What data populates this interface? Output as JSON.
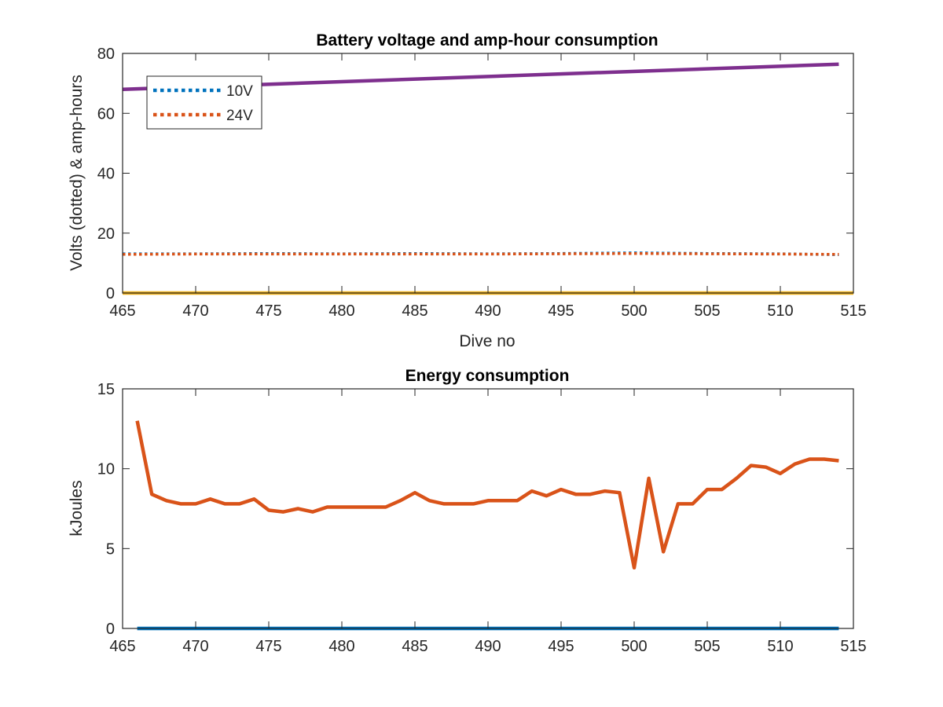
{
  "colors": {
    "c10v": "#0072BD",
    "c24v": "#D95319",
    "amp_hours": "#7E2F8E",
    "zero_series": "#EDB120",
    "energy": "#D95319",
    "energy_baseline": "#0072BD",
    "axes": "#262626",
    "background": "#FFFFFF"
  },
  "chart_data": [
    {
      "type": "line",
      "title": "Battery voltage and amp-hour consumption",
      "xlabel": "Dive no",
      "ylabel": "Volts (dotted) & amp-hours",
      "xlim": [
        465,
        515
      ],
      "ylim": [
        0,
        80
      ],
      "xticks": [
        465,
        470,
        475,
        480,
        485,
        490,
        495,
        500,
        505,
        510,
        515
      ],
      "yticks": [
        0,
        20,
        40,
        60,
        80
      ],
      "grid": false,
      "legend": {
        "placement": "top-left",
        "entries": [
          "10V",
          "24V"
        ]
      },
      "series": [
        {
          "name": "10V",
          "style": "dotted",
          "x": [
            465,
            470,
            475,
            480,
            485,
            490,
            495,
            500,
            505,
            510,
            514
          ],
          "y": [
            13.1,
            13.1,
            13.2,
            13.1,
            13.2,
            13.1,
            13.2,
            13.4,
            13.2,
            13.1,
            12.8
          ]
        },
        {
          "name": "24V",
          "style": "dotted",
          "x": [
            465,
            470,
            475,
            480,
            485,
            490,
            495,
            500,
            505,
            510,
            514
          ],
          "y": [
            12.9,
            13.0,
            13.0,
            13.0,
            13.0,
            13.0,
            13.1,
            13.2,
            13.1,
            13.0,
            12.9
          ]
        },
        {
          "style": "solid",
          "x": [
            465,
            514
          ],
          "y": [
            68.0,
            76.4
          ]
        },
        {
          "style": "solid",
          "x": [
            465,
            515
          ],
          "y": [
            0,
            0
          ]
        }
      ]
    },
    {
      "type": "line",
      "title": "Energy consumption",
      "xlabel": "",
      "ylabel": "kJoules",
      "xlim": [
        465,
        515
      ],
      "ylim": [
        0,
        15
      ],
      "xticks": [
        465,
        470,
        475,
        480,
        485,
        490,
        495,
        500,
        505,
        510,
        515
      ],
      "yticks": [
        0,
        5,
        10,
        15
      ],
      "grid": false,
      "series": [
        {
          "style": "solid",
          "x": [
            466,
            467,
            468,
            469,
            470,
            471,
            472,
            473,
            474,
            475,
            476,
            477,
            478,
            479,
            480,
            481,
            482,
            483,
            484,
            485,
            486,
            487,
            488,
            489,
            490,
            491,
            492,
            493,
            494,
            495,
            496,
            497,
            498,
            499,
            500,
            501,
            502,
            503,
            504,
            505,
            506,
            507,
            508,
            509,
            510,
            511,
            512,
            513,
            514
          ],
          "y": [
            13.0,
            8.4,
            8.0,
            7.8,
            7.8,
            8.1,
            7.8,
            7.8,
            8.1,
            7.4,
            7.3,
            7.5,
            7.3,
            7.6,
            7.6,
            7.6,
            7.6,
            7.6,
            8.0,
            8.5,
            8.0,
            7.8,
            7.8,
            7.8,
            8.0,
            8.0,
            8.0,
            8.6,
            8.3,
            8.7,
            8.4,
            8.4,
            8.6,
            8.5,
            3.8,
            9.4,
            4.8,
            7.8,
            7.8,
            8.7,
            8.7,
            9.4,
            10.2,
            10.1,
            9.7,
            10.3,
            10.6,
            10.6,
            10.5
          ]
        },
        {
          "style": "solid",
          "x": [
            466,
            514
          ],
          "y": [
            0,
            0
          ]
        }
      ]
    }
  ]
}
